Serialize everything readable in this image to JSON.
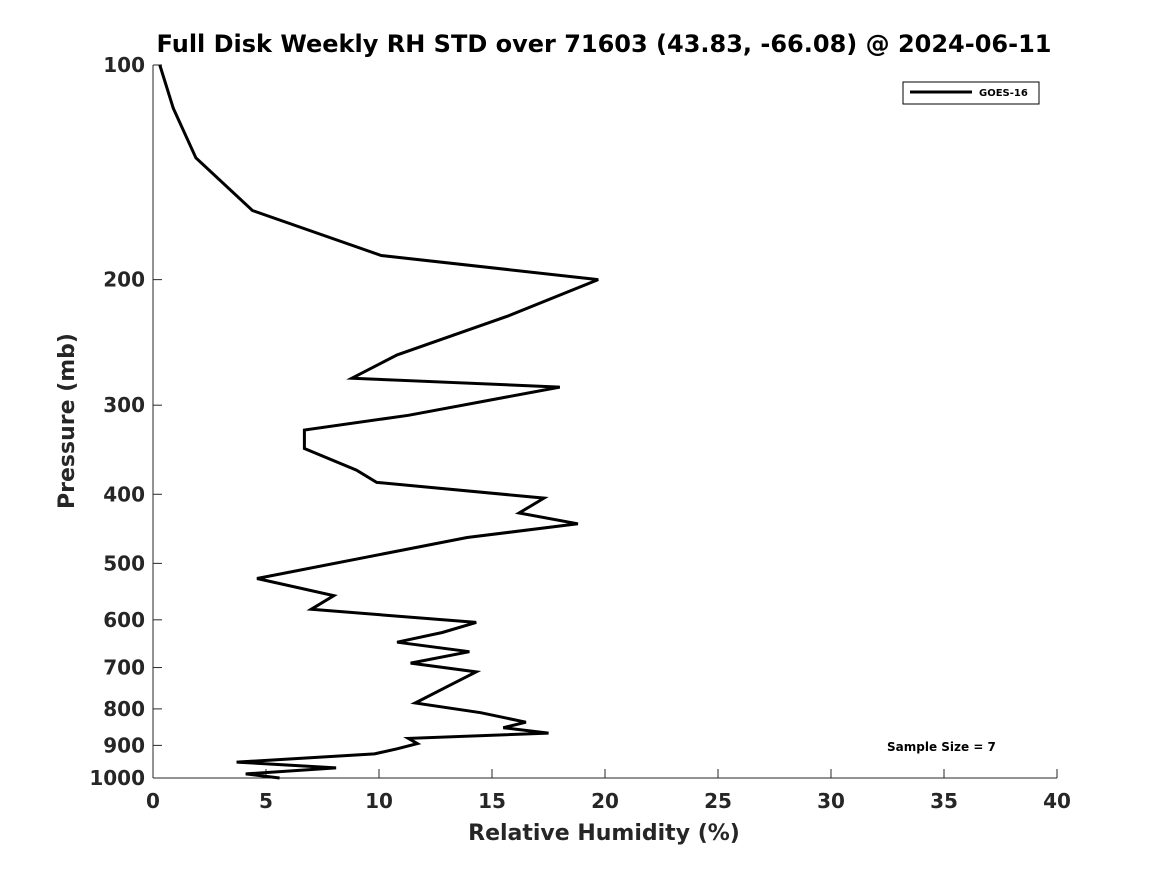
{
  "chart_data": {
    "type": "line",
    "title": "Full Disk Weekly RH STD over 71603 (43.83, -66.08) @ 2024-06-11",
    "xlabel": "Relative Humidity (%)",
    "ylabel": "Pressure (mb)",
    "xlim": [
      0,
      40
    ],
    "ylim": [
      100,
      1000
    ],
    "yscale": "log",
    "yreversed": true,
    "grid": false,
    "legend_position": "top-right",
    "x_ticks": [
      0,
      5,
      10,
      15,
      20,
      25,
      30,
      35,
      40
    ],
    "x_tick_labels": [
      "0",
      "5",
      "10",
      "15",
      "20",
      "25",
      "30",
      "35",
      "40"
    ],
    "y_ticks": [
      100,
      200,
      300,
      400,
      500,
      600,
      700,
      800,
      900,
      1000
    ],
    "y_tick_labels": [
      "100",
      "200",
      "300",
      "400",
      "500",
      "600",
      "700",
      "800",
      "900",
      "1000"
    ],
    "series": [
      {
        "name": "GOES-16",
        "color": "#000000",
        "rh": [
          0.3,
          0.9,
          1.9,
          4.4,
          10.1,
          19.7,
          15.7,
          10.8,
          8.8,
          18.0,
          11.3,
          6.7,
          6.7,
          9.0,
          9.9,
          17.3,
          16.2,
          18.8,
          13.9,
          4.6,
          8.0,
          7.0,
          14.3,
          12.8,
          10.8,
          14.0,
          11.4,
          14.3,
          13.0,
          11.6,
          14.5,
          16.5,
          15.5,
          17.5,
          11.3,
          11.7,
          10.8,
          9.8,
          3.7,
          8.1,
          4.1,
          5.6
        ],
        "pressure": [
          100,
          115,
          135,
          160,
          185,
          200,
          225,
          255,
          275,
          283,
          310,
          325,
          345,
          370,
          385,
          405,
          425,
          440,
          460,
          525,
          555,
          580,
          605,
          625,
          645,
          665,
          690,
          710,
          745,
          785,
          810,
          835,
          850,
          865,
          880,
          895,
          910,
          925,
          950,
          968,
          987,
          1000
        ]
      }
    ],
    "annotations": [
      "Sample Size = 7"
    ]
  }
}
